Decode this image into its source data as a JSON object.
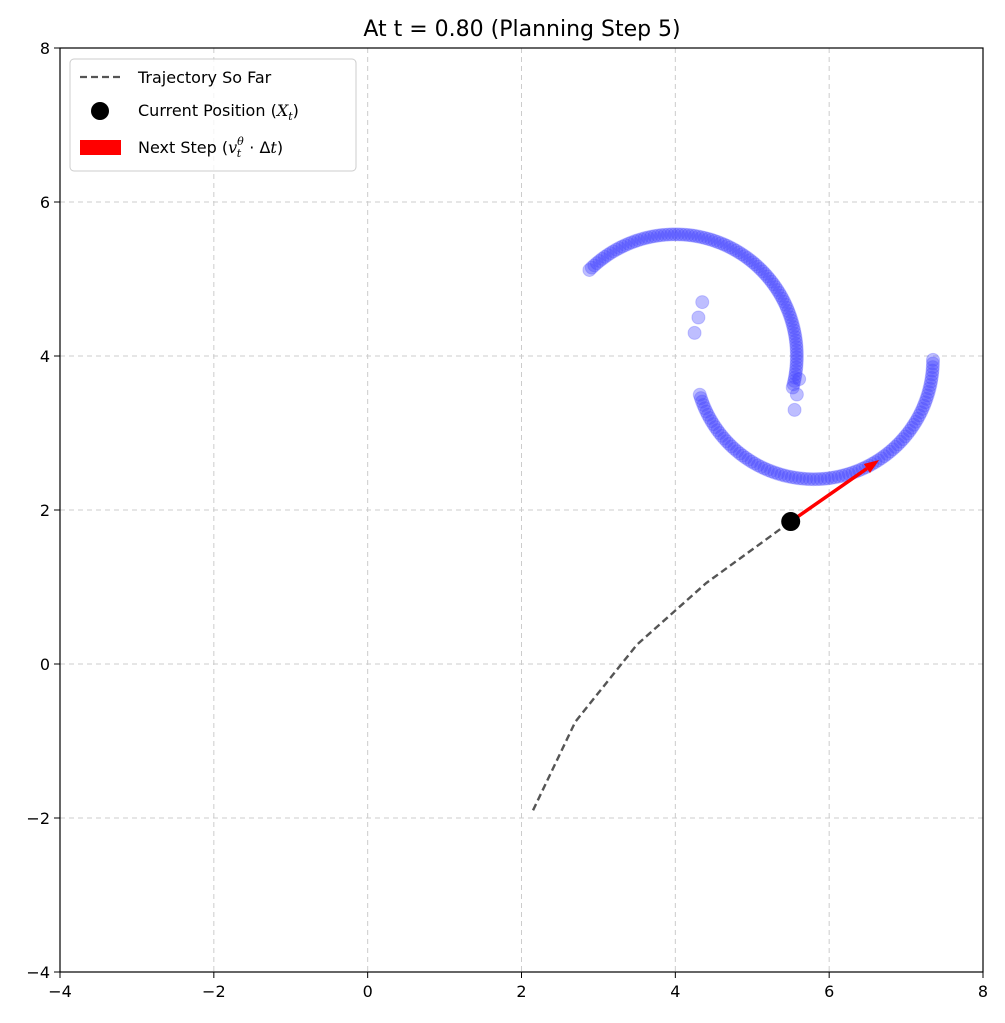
{
  "chart_data": {
    "type": "scatter",
    "title": "At t = 0.80 (Planning Step 5)",
    "xlim": [
      -4,
      8
    ],
    "ylim": [
      -4,
      8
    ],
    "xticks": [
      -4,
      -2,
      0,
      2,
      4,
      6,
      8
    ],
    "yticks": [
      -4,
      -2,
      0,
      2,
      4,
      6,
      8
    ],
    "xtick_labels": [
      "−4",
      "−2",
      "0",
      "2",
      "4",
      "6",
      "8"
    ],
    "ytick_labels": [
      "−4",
      "−2",
      "0",
      "2",
      "4",
      "6",
      "8"
    ],
    "grid": true,
    "legend_position": "top-left",
    "legend": {
      "trajectory": "Trajectory So Far",
      "current_prefix": "Current Position (",
      "current_var": "X",
      "current_sub": "t",
      "current_suffix": ")",
      "step_prefix": "Next Step (",
      "step_var": "v",
      "step_sup": "θ",
      "step_sub": "t",
      "step_mid": " · Δ",
      "step_var2": "t",
      "step_suffix": ")"
    },
    "colors": {
      "target": "#4444ff",
      "trajectory": "#555555",
      "current": "#000000",
      "arrow": "#ff0000",
      "grid": "#cccccc"
    },
    "target_distribution": {
      "upper_arc": {
        "center": [
          4.0,
          4.0
        ],
        "radius": 1.58,
        "from_deg": 135,
        "to_deg": -15,
        "points": 95
      },
      "lower_arc": {
        "center": [
          5.8,
          3.95
        ],
        "radius": 1.55,
        "from_deg": 197,
        "to_deg": 360,
        "points": 95
      },
      "tail_upper": [
        [
          5.55,
          3.3
        ],
        [
          5.58,
          3.5
        ],
        [
          5.61,
          3.7
        ]
      ],
      "tail_lower": [
        [
          4.35,
          4.7
        ],
        [
          4.3,
          4.5
        ],
        [
          4.25,
          4.3
        ]
      ]
    },
    "trajectory": {
      "x": [
        2.15,
        2.7,
        3.5,
        4.4,
        5.5
      ],
      "y": [
        -1.9,
        -0.75,
        0.25,
        1.05,
        1.85
      ]
    },
    "current_position": {
      "x": 5.5,
      "y": 1.85
    },
    "next_step": {
      "from": [
        5.5,
        1.85
      ],
      "to": [
        6.65,
        2.65
      ]
    }
  }
}
